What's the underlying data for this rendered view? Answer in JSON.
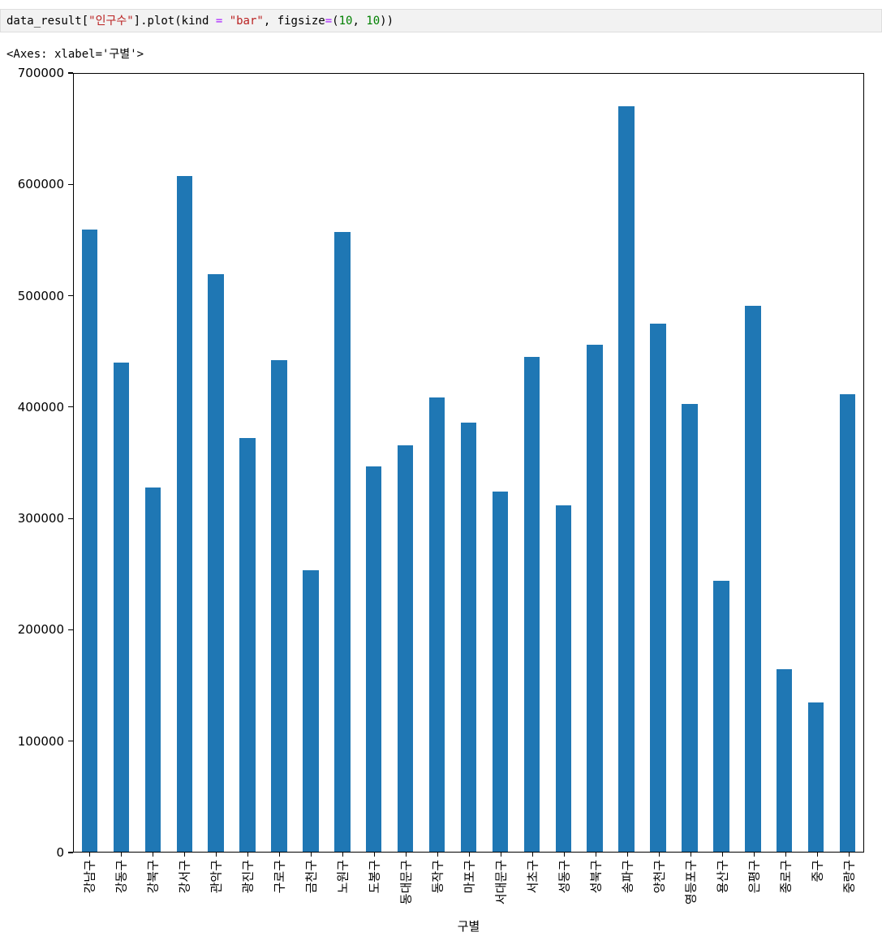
{
  "code_cell": {
    "tokens": [
      {
        "text": "data_result[",
        "color": "#000000"
      },
      {
        "text": "\"인구수\"",
        "color": "#ba2121"
      },
      {
        "text": "].plot(kind ",
        "color": "#000000"
      },
      {
        "text": "=",
        "color": "#aa22ff"
      },
      {
        "text": " ",
        "color": "#000000"
      },
      {
        "text": "\"bar\"",
        "color": "#ba2121"
      },
      {
        "text": ", figsize",
        "color": "#000000"
      },
      {
        "text": "=",
        "color": "#aa22ff"
      },
      {
        "text": "(",
        "color": "#000000"
      },
      {
        "text": "10",
        "color": "#008000"
      },
      {
        "text": ", ",
        "color": "#000000"
      },
      {
        "text": "10",
        "color": "#008000"
      },
      {
        "text": "))",
        "color": "#000000"
      }
    ]
  },
  "output_line": "<Axes: xlabel='구별'>",
  "chart_data": {
    "type": "bar",
    "title": "",
    "xlabel": "구별",
    "ylabel": "",
    "ylim": [
      0,
      700000
    ],
    "yticks": [
      0,
      100000,
      200000,
      300000,
      400000,
      500000,
      600000,
      700000
    ],
    "bar_color": "#1f77b4",
    "grid": false,
    "legend": "none",
    "categories": [
      "강남구",
      "강동구",
      "강북구",
      "강서구",
      "관악구",
      "광진구",
      "구로구",
      "금천구",
      "노원구",
      "도봉구",
      "동대문구",
      "동작구",
      "마포구",
      "서대문구",
      "서초구",
      "성동구",
      "성북구",
      "송파구",
      "양천구",
      "영등포구",
      "용산구",
      "은평구",
      "종로구",
      "중구",
      "중랑구"
    ],
    "values": [
      560000,
      440000,
      328000,
      608000,
      520000,
      372000,
      442000,
      253000,
      558000,
      347000,
      366000,
      409000,
      386000,
      324000,
      445000,
      312000,
      456000,
      671000,
      475000,
      403000,
      244000,
      491000,
      164000,
      134000,
      412000
    ]
  }
}
